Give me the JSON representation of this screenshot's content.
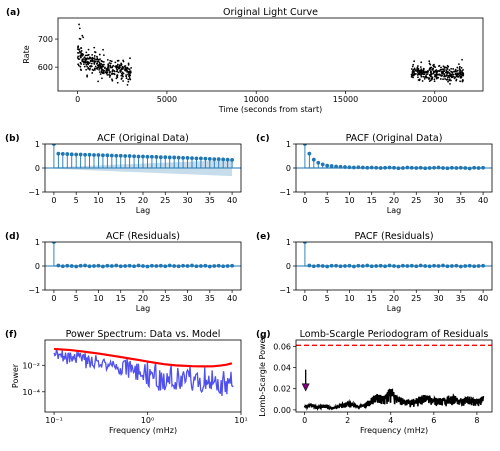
{
  "chart_data": [
    {
      "id": "a",
      "panel_label": "(a)",
      "type": "scatter",
      "title": "Original Light Curve",
      "xlabel": "Time (seconds from start)",
      "ylabel": "Rate",
      "xlim": [
        -1100,
        22700
      ],
      "ylim": [
        515,
        775
      ],
      "xticks": [
        0,
        5000,
        10000,
        15000,
        20000
      ],
      "xticklabels": [
        "0",
        "5000",
        "10000",
        "15000",
        "20000"
      ],
      "yticks": [
        600,
        700
      ],
      "yticklabels": [
        "600",
        "700"
      ],
      "segments": [
        {
          "t_start": 0,
          "t_end": 3000,
          "n": 330,
          "rate_start": 655,
          "rate_end": 580,
          "scatter": 24,
          "seed": 3
        },
        {
          "t_start": 18700,
          "t_end": 21600,
          "n": 310,
          "rate_start": 585,
          "rate_end": 575,
          "scatter": 17,
          "seed": 7
        }
      ],
      "extra_points": [
        [
          80,
          752
        ],
        [
          120,
          738
        ],
        [
          260,
          712
        ],
        [
          310,
          706
        ],
        [
          160,
          700
        ]
      ]
    },
    {
      "id": "b",
      "panel_label": "(b)",
      "type": "stem",
      "title": "ACF (Original Data)",
      "xlabel": "Lag",
      "ylabel": "",
      "xlim": [
        -2,
        42
      ],
      "ylim": [
        -1,
        1
      ],
      "xticks": [
        0,
        5,
        10,
        15,
        20,
        25,
        30,
        35,
        40
      ],
      "xticklabels": [
        "0",
        "5",
        "10",
        "15",
        "20",
        "25",
        "30",
        "35",
        "40"
      ],
      "yticks": [
        -1,
        0,
        1
      ],
      "yticklabels": [
        "−1",
        "0",
        "1"
      ],
      "values": [
        1.0,
        0.6,
        0.59,
        0.58,
        0.57,
        0.56,
        0.56,
        0.55,
        0.55,
        0.54,
        0.54,
        0.53,
        0.53,
        0.52,
        0.51,
        0.51,
        0.5,
        0.5,
        0.49,
        0.48,
        0.48,
        0.47,
        0.47,
        0.46,
        0.45,
        0.45,
        0.44,
        0.44,
        0.43,
        0.42,
        0.42,
        0.41,
        0.4,
        0.4,
        0.39,
        0.38,
        0.37,
        0.37,
        0.36,
        0.35,
        0.34
      ],
      "confidence_band": {
        "lower_start": -0.03,
        "lower_end": -0.34
      }
    },
    {
      "id": "c",
      "panel_label": "(c)",
      "type": "stem",
      "title": "PACF (Original Data)",
      "xlabel": "Lag",
      "ylabel": "",
      "xlim": [
        -2,
        42
      ],
      "ylim": [
        -1,
        1
      ],
      "xticks": [
        0,
        5,
        10,
        15,
        20,
        25,
        30,
        35,
        40
      ],
      "xticklabels": [
        "0",
        "5",
        "10",
        "15",
        "20",
        "25",
        "30",
        "35",
        "40"
      ],
      "yticks": [
        -1,
        0,
        1
      ],
      "yticklabels": [
        "−1",
        "0",
        "1"
      ],
      "values": [
        1.0,
        0.6,
        0.35,
        0.22,
        0.15,
        0.1,
        0.08,
        0.06,
        0.05,
        0.04,
        0.03,
        0.02,
        0.03,
        0.02,
        0.01,
        0.02,
        0.01,
        0.0,
        0.01,
        0.02,
        0.01,
        -0.01,
        0.0,
        0.02,
        0.01,
        0.0,
        0.01,
        -0.01,
        0.0,
        0.01,
        0.02,
        0.0,
        -0.01,
        0.01,
        0.0,
        0.01,
        0.0,
        -0.02,
        0.01,
        0.0,
        0.01
      ],
      "confidence_band": {
        "lower_start": -0.03,
        "lower_end": -0.03
      }
    },
    {
      "id": "d",
      "panel_label": "(d)",
      "type": "stem",
      "title": "ACF (Residuals)",
      "xlabel": "Lag",
      "ylabel": "",
      "xlim": [
        -2,
        42
      ],
      "ylim": [
        -1,
        1
      ],
      "xticks": [
        0,
        5,
        10,
        15,
        20,
        25,
        30,
        35,
        40
      ],
      "xticklabels": [
        "0",
        "5",
        "10",
        "15",
        "20",
        "25",
        "30",
        "35",
        "40"
      ],
      "yticks": [
        -1,
        0,
        1
      ],
      "yticklabels": [
        "−1",
        "0",
        "1"
      ],
      "values": [
        1.0,
        0.02,
        -0.01,
        0.01,
        0.0,
        -0.02,
        0.01,
        0.02,
        -0.01,
        0.0,
        0.01,
        -0.02,
        0.01,
        0.0,
        0.02,
        -0.01,
        0.0,
        0.01,
        -0.01,
        0.02,
        0.0,
        -0.02,
        0.01,
        0.0,
        0.01,
        -0.01,
        0.02,
        0.0,
        -0.01,
        0.01,
        0.0,
        0.02,
        -0.01,
        0.0,
        0.01,
        -0.02,
        0.0,
        0.01,
        -0.01,
        0.0,
        0.01
      ],
      "confidence_band": {
        "lower_start": -0.03,
        "lower_end": -0.03
      }
    },
    {
      "id": "e",
      "panel_label": "(e)",
      "type": "stem",
      "title": "PACF (Residuals)",
      "xlabel": "Lag",
      "ylabel": "",
      "xlim": [
        -2,
        42
      ],
      "ylim": [
        -1,
        1
      ],
      "xticks": [
        0,
        5,
        10,
        15,
        20,
        25,
        30,
        35,
        40
      ],
      "xticklabels": [
        "0",
        "5",
        "10",
        "15",
        "20",
        "25",
        "30",
        "35",
        "40"
      ],
      "yticks": [
        -1,
        0,
        1
      ],
      "yticklabels": [
        "−1",
        "0",
        "1"
      ],
      "values": [
        1.0,
        0.02,
        -0.01,
        0.01,
        0.0,
        -0.02,
        0.01,
        0.01,
        -0.01,
        0.0,
        0.01,
        -0.02,
        0.01,
        0.0,
        0.02,
        -0.01,
        0.0,
        0.01,
        -0.01,
        0.02,
        0.0,
        -0.02,
        0.01,
        0.0,
        0.01,
        -0.01,
        0.02,
        0.0,
        -0.01,
        0.01,
        0.0,
        0.02,
        -0.01,
        0.0,
        0.01,
        -0.02,
        0.0,
        0.01,
        -0.01,
        0.0,
        0.01
      ],
      "confidence_band": {
        "lower_start": -0.03,
        "lower_end": -0.03
      }
    },
    {
      "id": "f",
      "panel_label": "(f)",
      "type": "line",
      "title": "Power Spectrum: Data vs. Model",
      "xlabel": "Frequency (mHz)",
      "ylabel": "Power",
      "xscale": "log",
      "yscale": "log",
      "xlim": [
        0.08,
        10
      ],
      "ylim": [
        3e-06,
        0.8
      ],
      "xticks": [
        0.1,
        1,
        10
      ],
      "xticklabels": [
        "10⁻¹",
        "10⁰",
        "10¹"
      ],
      "yticks": [
        0.0001,
        0.01
      ],
      "yticklabels": [
        "10⁻⁴",
        "10⁻²"
      ],
      "series": [
        {
          "role": "data",
          "color": "#5050ee",
          "f_min": 0.1,
          "f_max": 8.3,
          "n": 220,
          "seed": 11,
          "base_amp": 0.16,
          "base_slope": 0.95,
          "base_floor": 0.002
        },
        {
          "role": "model",
          "color": "#ff0000",
          "x": [
            0.1,
            0.15,
            0.2,
            0.3,
            0.5,
            0.8,
            1.0,
            1.5,
            2.0,
            3.0,
            4.0,
            5.0,
            6.0,
            7.0,
            8.0
          ],
          "y": [
            0.17,
            0.14,
            0.11,
            0.076,
            0.043,
            0.025,
            0.019,
            0.012,
            0.0098,
            0.0085,
            0.0082,
            0.0083,
            0.0095,
            0.011,
            0.014
          ]
        }
      ]
    },
    {
      "id": "g",
      "panel_label": "(g)",
      "type": "area",
      "title": "Lomb-Scargle Periodogram of Residuals",
      "xlabel": "Frequency (mHz)",
      "ylabel": "Lomb-Scargle Power",
      "xlim": [
        -0.4,
        8.7
      ],
      "ylim": [
        -0.002,
        0.066
      ],
      "xticks": [
        0,
        2,
        4,
        6,
        8
      ],
      "xticklabels": [
        "0",
        "2",
        "4",
        "6",
        "8"
      ],
      "yticks": [
        0.0,
        0.02,
        0.04,
        0.06
      ],
      "yticklabels": [
        "0.00",
        "0.02",
        "0.04",
        "0.06"
      ],
      "threshold": 0.061,
      "threshold_color": "#ff0000",
      "arrow": {
        "x": 0.05,
        "y_from": 0.038,
        "y_to": 0.018,
        "color": "#800080"
      },
      "envelope": {
        "x": [
          0.0,
          0.3,
          0.6,
          1.0,
          1.3,
          1.7,
          2.1,
          2.5,
          2.8,
          3.1,
          3.4,
          3.7,
          4.0,
          4.3,
          4.6,
          4.9,
          5.2,
          5.6,
          6.0,
          6.4,
          6.8,
          7.2,
          7.6,
          8.0,
          8.3
        ],
        "y": [
          0.004,
          0.006,
          0.004,
          0.005,
          0.002,
          0.006,
          0.008,
          0.004,
          0.006,
          0.012,
          0.016,
          0.013,
          0.021,
          0.014,
          0.011,
          0.009,
          0.012,
          0.014,
          0.012,
          0.011,
          0.015,
          0.01,
          0.013,
          0.011,
          0.014
        ]
      },
      "n_fill": 700,
      "seed": 5
    }
  ]
}
